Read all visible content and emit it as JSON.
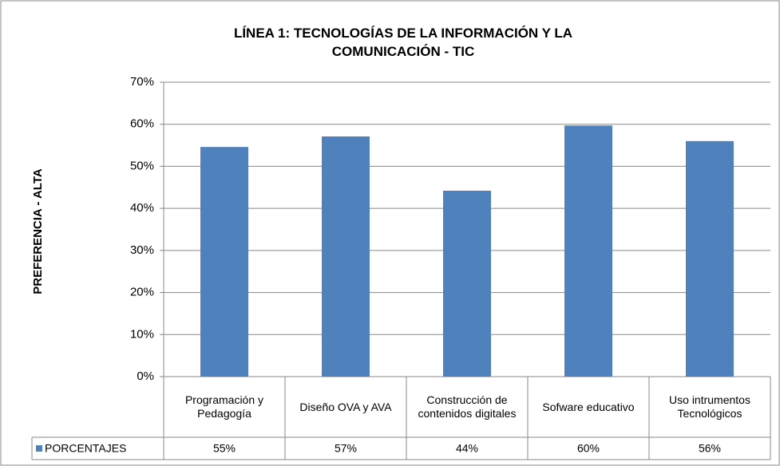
{
  "chart_data": {
    "type": "bar",
    "title": "LÍNEA 1: TECNOLOGÍAS DE LA INFORMACIÓN Y LA COMUNICACIÓN - TIC",
    "y_label": "PREFERENCIA - ALTA",
    "categories": [
      "Programación y Pedagogía",
      "Diseño OVA y AVA",
      "Construcción de contenidos digitales",
      "Sofware educativo",
      "Uso intrumentos Tecnológicos"
    ],
    "series": [
      {
        "name": "PORCENTAJES",
        "color": "#4f81bd",
        "values": [
          54.6,
          57.1,
          44.2,
          59.7,
          56.0
        ],
        "value_labels": [
          "55%",
          "57%",
          "44%",
          "60%",
          "56%"
        ]
      }
    ],
    "ylim": [
      0,
      70
    ],
    "yticks": [
      {
        "value": 0,
        "label": "0%"
      },
      {
        "value": 10,
        "label": "10%"
      },
      {
        "value": 20,
        "label": "20%"
      },
      {
        "value": 30,
        "label": "30%"
      },
      {
        "value": 40,
        "label": "40%"
      },
      {
        "value": 50,
        "label": "50%"
      },
      {
        "value": 60,
        "label": "60%"
      },
      {
        "value": 70,
        "label": "70%"
      }
    ],
    "grid": true,
    "data_table": true
  }
}
